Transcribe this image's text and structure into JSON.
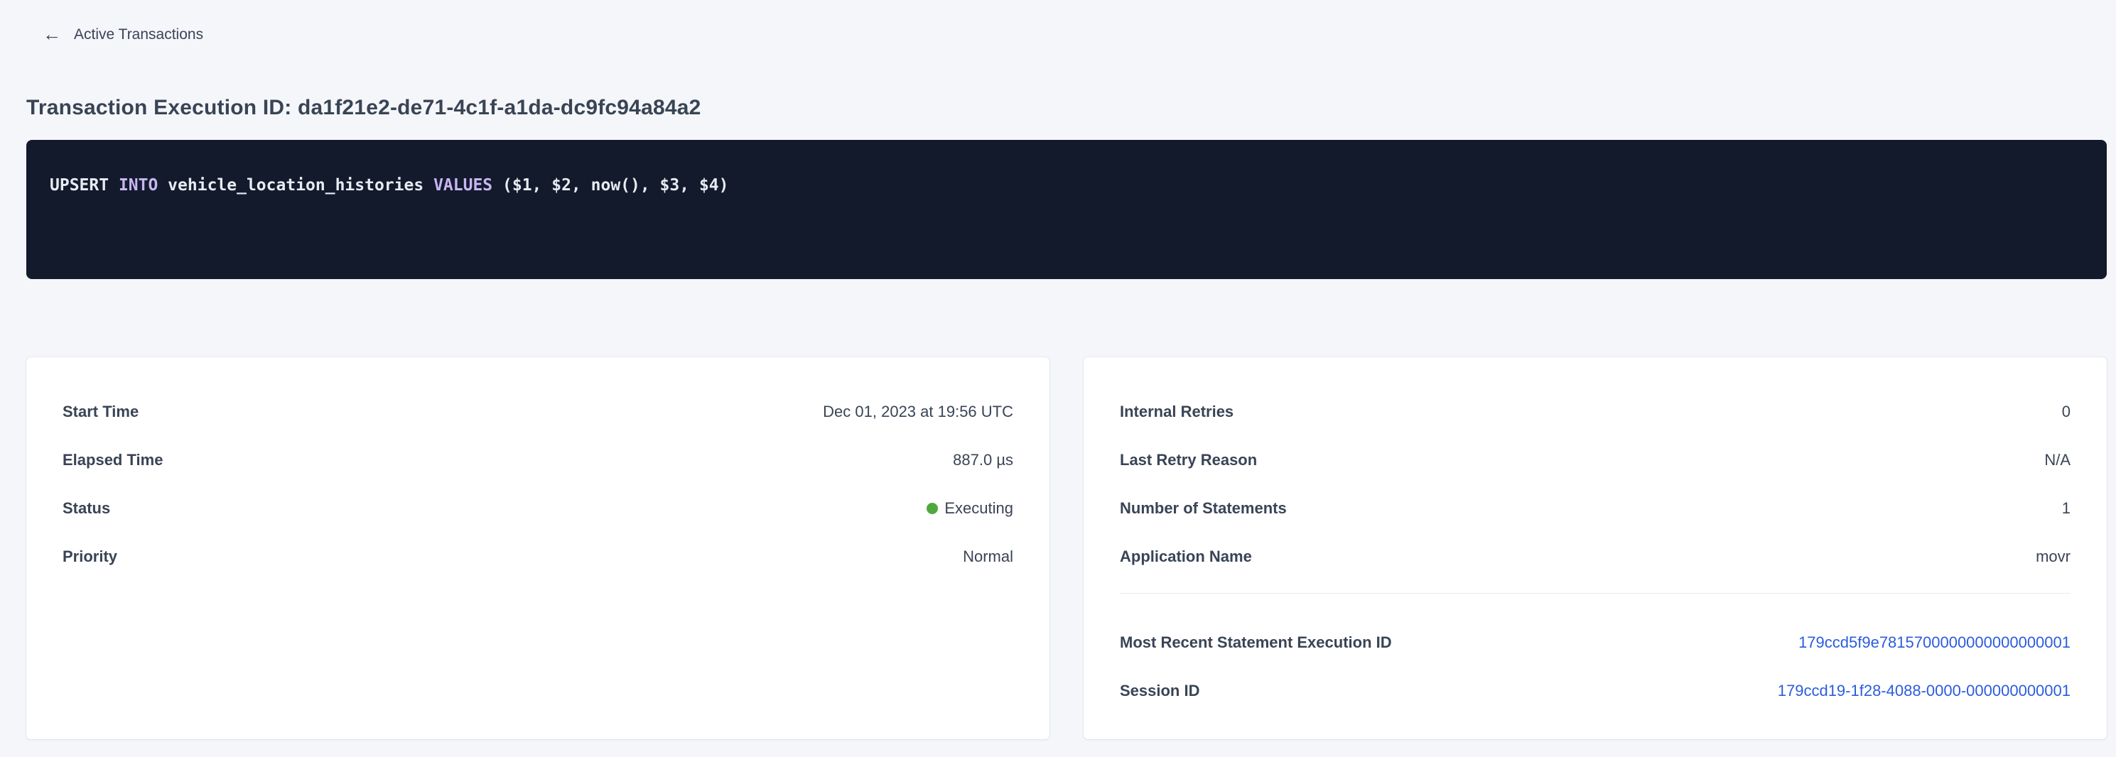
{
  "colors": {
    "page_bg": "#f5f6fa",
    "text_dark": "#394455",
    "code_bg": "#121a2c",
    "code_plain": "#e7ecf3",
    "keyword_purple": "#c8b5f2",
    "link_blue": "#2b5cdc",
    "status_green": "#50a83c"
  },
  "header": {
    "back_arrow": "←",
    "back_label": "Active Transactions",
    "title": "Transaction Execution ID: da1f21e2-de71-4c1f-a1da-dc9fc94a84a2"
  },
  "sql": {
    "seg1": "UPSERT ",
    "kw1": "INTO",
    "seg2": " vehicle_location_histories ",
    "kw2": "VALUES",
    "seg3": " ($1, $2, now(), $3, $4)"
  },
  "left_card": {
    "rows": [
      {
        "label": "Start Time",
        "value": "Dec 01, 2023 at 19:56 UTC"
      },
      {
        "label": "Elapsed Time",
        "value": "887.0 µs"
      },
      {
        "label": "Status",
        "value": "Executing"
      },
      {
        "label": "Priority",
        "value": "Normal"
      }
    ]
  },
  "right_card": {
    "rows": [
      {
        "label": "Internal Retries",
        "value": "0"
      },
      {
        "label": "Last Retry Reason",
        "value": "N/A"
      },
      {
        "label": "Number of Statements",
        "value": "1"
      },
      {
        "label": "Application Name",
        "value": "movr"
      }
    ],
    "link_rows": [
      {
        "label": "Most Recent Statement Execution ID",
        "value": "179ccd5f9e7815700000000000000001"
      },
      {
        "label": "Session ID",
        "value": "179ccd19-1f28-4088-0000-000000000001"
      }
    ]
  }
}
